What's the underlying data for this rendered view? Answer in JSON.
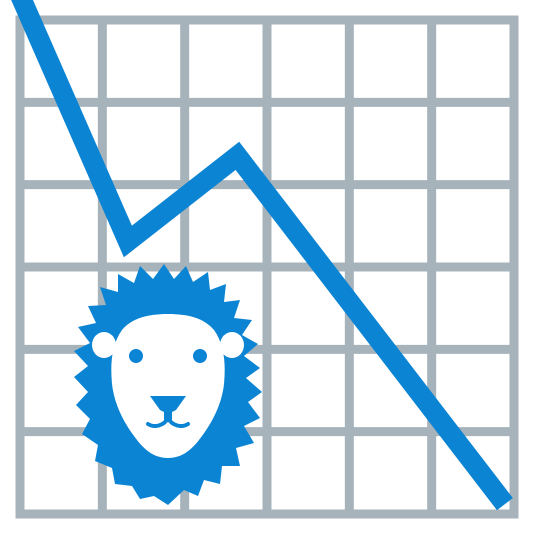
{
  "icon": {
    "name": "bear-market-chart-icon",
    "depicts": [
      "grid",
      "downward-trend-line",
      "lion-head"
    ]
  },
  "colors": {
    "background": "#ffffff",
    "grid": "#a7b3bb",
    "accent": "#0c84d4",
    "face": "#ffffff",
    "features": "#0c84d4"
  },
  "chart_data": {
    "type": "line",
    "grid_columns": 6,
    "grid_rows": 6,
    "x": [
      0,
      1.31,
      2.64,
      5.89
    ],
    "y": [
      6.3,
      3.31,
      4.35,
      0.12
    ],
    "xlim": [
      0,
      6
    ],
    "ylim": [
      0,
      6
    ]
  }
}
